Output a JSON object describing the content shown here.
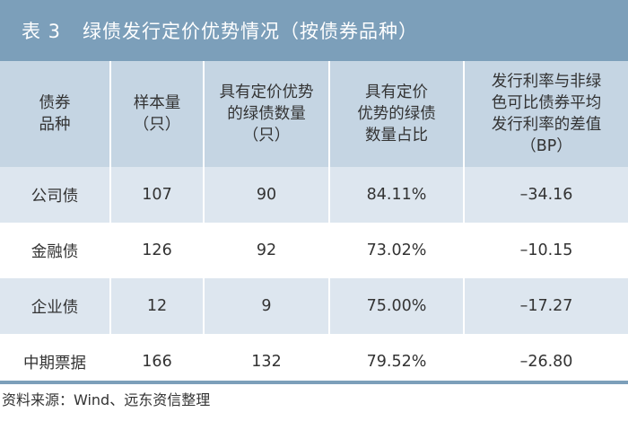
{
  "title": {
    "number": "表 3",
    "text": "绿债发行定价优势情况（按债券品种）"
  },
  "headers": [
    [
      "债券",
      "品种"
    ],
    [
      "样本量",
      "（只）"
    ],
    [
      "具有定价优势",
      "的绿债数量",
      "（只）"
    ],
    [
      "具有定价",
      "优势的绿债",
      "数量占比"
    ],
    [
      "发行利率与非绿",
      "色可比债券平均",
      "发行利率的差值",
      "（BP）"
    ]
  ],
  "rows": [
    [
      "公司债",
      "107",
      "90",
      "84.11%",
      "–34.16"
    ],
    [
      "金融债",
      "126",
      "92",
      "73.02%",
      "–10.15"
    ],
    [
      "企业债",
      "12",
      "9",
      "75.00%",
      "–17.27"
    ],
    [
      "中期票据",
      "166",
      "132",
      "79.52%",
      "–26.80"
    ]
  ],
  "source": "资料来源：Wind、远东资信整理",
  "colors": {
    "title_bg": "#7c9fba",
    "header_bg": "#c5d5e3",
    "stripe": "#dde6ef"
  }
}
